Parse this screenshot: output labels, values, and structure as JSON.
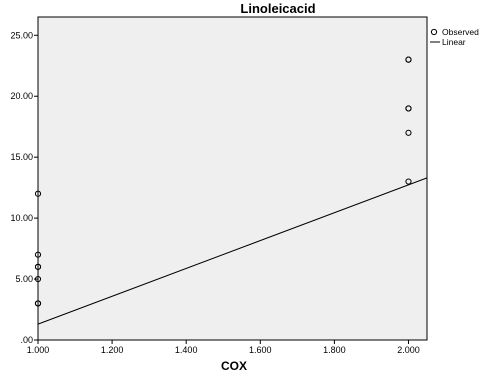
{
  "chart_data": {
    "type": "scatter",
    "title": "Linoleicacid",
    "xlabel": "COX",
    "ylabel": "",
    "xlim": [
      1.0,
      2.05
    ],
    "ylim": [
      0,
      26.5
    ],
    "xticks": [
      1.0,
      1.2,
      1.4,
      1.6,
      1.8,
      2.0
    ],
    "xtick_labels": [
      "1.000",
      "1.200",
      "1.400",
      "1.600",
      "1.800",
      "2.000"
    ],
    "yticks": [
      0,
      5,
      10,
      15,
      20,
      25
    ],
    "ytick_labels": [
      ".00",
      "5.00",
      "10.00",
      "15.00",
      "20.00",
      "25.00"
    ],
    "grid": false,
    "legend_position": "top-right",
    "series": [
      {
        "name": "Observed",
        "kind": "scatter",
        "x": [
          1.0,
          1.0,
          1.0,
          1.0,
          1.0,
          1.0,
          1.0,
          2.0,
          2.0,
          2.0,
          2.0,
          2.0,
          2.0
        ],
        "y": [
          3,
          5,
          6,
          6,
          7,
          12,
          3,
          13,
          17,
          19,
          19,
          23,
          23
        ]
      },
      {
        "name": "Linear",
        "kind": "line",
        "x": [
          1.0,
          2.05
        ],
        "y": [
          1.3,
          13.3
        ]
      }
    ],
    "colors": {
      "plot_background": "#efefef",
      "marker": "#000000",
      "line": "#000000"
    }
  }
}
